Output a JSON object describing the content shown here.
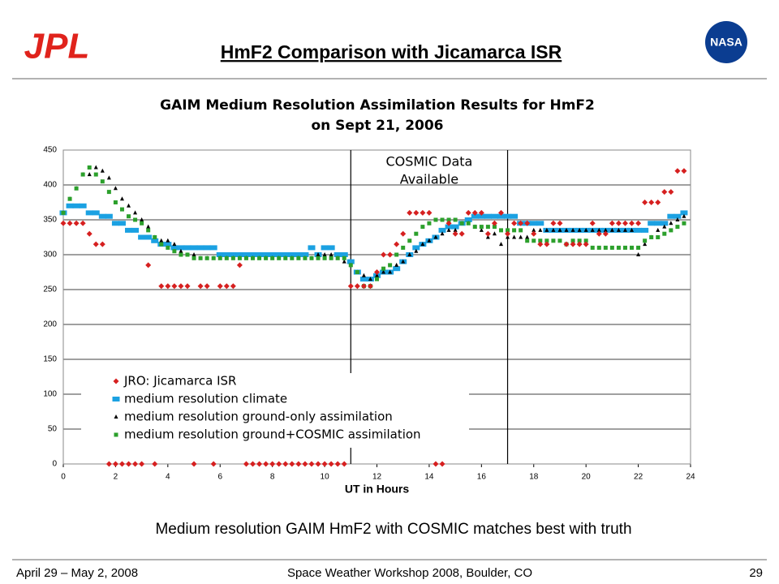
{
  "header": {
    "title": "HmF2 Comparison with Jicamarca ISR",
    "logo_left": "JPL",
    "logo_right": "NASA"
  },
  "caption": "Medium resolution GAIM HmF2 with COSMIC matches best with truth",
  "footer": {
    "date": "April 29 – May 2, 2008",
    "event": "Space Weather Workshop 2008, Boulder, CO",
    "page": "29"
  },
  "chart_data": {
    "type": "scatter",
    "title": [
      "GAIM Medium Resolution Assimilation Results for HmF2",
      "on Sept 21, 2006"
    ],
    "annotation": {
      "lines": [
        "COSMIC Data",
        "Available"
      ],
      "x": [
        11,
        17
      ]
    },
    "xlabel": "UT in Hours",
    "xlim": [
      0,
      24
    ],
    "xticks": [
      0,
      2,
      4,
      6,
      8,
      10,
      12,
      14,
      16,
      18,
      20,
      22,
      24
    ],
    "ylim": [
      0,
      450
    ],
    "yticks": [
      0,
      50,
      100,
      150,
      200,
      250,
      300,
      350,
      400,
      450
    ],
    "grid": true,
    "legend": "lower left",
    "x": [
      0,
      0.25,
      0.5,
      0.75,
      1,
      1.25,
      1.5,
      1.75,
      2,
      2.25,
      2.5,
      2.75,
      3,
      3.25,
      3.5,
      3.75,
      4,
      4.25,
      4.5,
      4.75,
      5,
      5.25,
      5.5,
      5.75,
      6,
      6.25,
      6.5,
      6.75,
      7,
      7.25,
      7.5,
      7.75,
      8,
      8.25,
      8.5,
      8.75,
      9,
      9.25,
      9.5,
      9.75,
      10,
      10.25,
      10.5,
      10.75,
      11,
      11.25,
      11.5,
      11.75,
      12,
      12.25,
      12.5,
      12.75,
      13,
      13.25,
      13.5,
      13.75,
      14,
      14.25,
      14.5,
      14.75,
      15,
      15.25,
      15.5,
      15.75,
      16,
      16.25,
      16.5,
      16.75,
      17,
      17.25,
      17.5,
      17.75,
      18,
      18.25,
      18.5,
      18.75,
      19,
      19.25,
      19.5,
      19.75,
      20,
      20.25,
      20.5,
      20.75,
      21,
      21.25,
      21.5,
      21.75,
      22,
      22.25,
      22.5,
      22.75,
      23,
      23.25,
      23.5,
      23.75
    ],
    "series": [
      {
        "name": "JRO: Jicamarca ISR",
        "color": "#d62020",
        "marker": "diamond",
        "values": [
          345,
          345,
          345,
          345,
          330,
          315,
          315,
          0,
          0,
          0,
          0,
          0,
          0,
          285,
          0,
          255,
          255,
          255,
          255,
          255,
          0,
          255,
          255,
          0,
          255,
          255,
          255,
          285,
          0,
          0,
          0,
          0,
          0,
          0,
          0,
          0,
          0,
          0,
          0,
          0,
          0,
          0,
          0,
          0,
          255,
          255,
          255,
          255,
          275,
          300,
          300,
          315,
          330,
          360,
          360,
          360,
          360,
          0,
          0,
          345,
          330,
          330,
          360,
          360,
          360,
          330,
          345,
          360,
          330,
          345,
          345,
          345,
          330,
          315,
          315,
          345,
          345,
          315,
          315,
          315,
          315,
          345,
          330,
          330,
          345,
          345,
          345,
          345,
          345,
          375,
          375,
          375,
          390,
          390,
          420,
          420
        ]
      },
      {
        "name": "medium resolution climate",
        "color": "#1ba1e2",
        "marker": "wide-square",
        "values": [
          360,
          370,
          370,
          370,
          360,
          360,
          355,
          355,
          345,
          345,
          335,
          335,
          325,
          325,
          320,
          315,
          315,
          310,
          310,
          310,
          310,
          310,
          310,
          310,
          300,
          300,
          300,
          300,
          300,
          300,
          300,
          300,
          300,
          300,
          300,
          300,
          300,
          300,
          310,
          300,
          310,
          310,
          300,
          300,
          290,
          275,
          265,
          265,
          270,
          275,
          275,
          280,
          290,
          300,
          310,
          315,
          320,
          325,
          335,
          340,
          340,
          345,
          350,
          355,
          355,
          355,
          355,
          355,
          355,
          355,
          345,
          345,
          345,
          345,
          335,
          335,
          335,
          335,
          335,
          335,
          335,
          335,
          335,
          335,
          335,
          335,
          335,
          335,
          335,
          335,
          345,
          345,
          345,
          355,
          355,
          360
        ]
      },
      {
        "name": "medium resolution ground-only assimilation",
        "color": "#000000",
        "marker": "triangle",
        "values": [
          360,
          380,
          395,
          415,
          415,
          425,
          420,
          410,
          395,
          380,
          370,
          360,
          350,
          340,
          325,
          320,
          320,
          315,
          305,
          300,
          300,
          295,
          295,
          295,
          295,
          295,
          295,
          295,
          295,
          295,
          295,
          295,
          295,
          295,
          295,
          295,
          295,
          295,
          295,
          300,
          300,
          300,
          295,
          290,
          285,
          275,
          270,
          265,
          270,
          275,
          275,
          285,
          290,
          300,
          305,
          315,
          320,
          325,
          330,
          335,
          335,
          345,
          345,
          340,
          335,
          325,
          330,
          315,
          325,
          325,
          325,
          325,
          335,
          335,
          335,
          335,
          335,
          335,
          335,
          335,
          335,
          335,
          335,
          335,
          335,
          335,
          335,
          335,
          300,
          315,
          325,
          335,
          340,
          345,
          350,
          355
        ]
      },
      {
        "name": "medium resolution ground+COSMIC assimilation",
        "color": "#2ca02c",
        "marker": "square",
        "values": [
          360,
          380,
          395,
          415,
          425,
          415,
          405,
          390,
          375,
          365,
          355,
          350,
          345,
          335,
          325,
          315,
          310,
          305,
          300,
          300,
          295,
          295,
          295,
          295,
          295,
          295,
          295,
          295,
          295,
          295,
          295,
          295,
          295,
          295,
          295,
          295,
          295,
          295,
          295,
          295,
          295,
          295,
          295,
          295,
          285,
          275,
          255,
          255,
          265,
          280,
          285,
          300,
          310,
          320,
          330,
          340,
          345,
          350,
          350,
          350,
          350,
          345,
          345,
          340,
          340,
          340,
          340,
          335,
          335,
          335,
          335,
          320,
          320,
          320,
          320,
          320,
          320,
          315,
          320,
          320,
          320,
          310,
          310,
          310,
          310,
          310,
          310,
          310,
          310,
          320,
          325,
          325,
          330,
          335,
          340,
          345
        ]
      }
    ]
  }
}
